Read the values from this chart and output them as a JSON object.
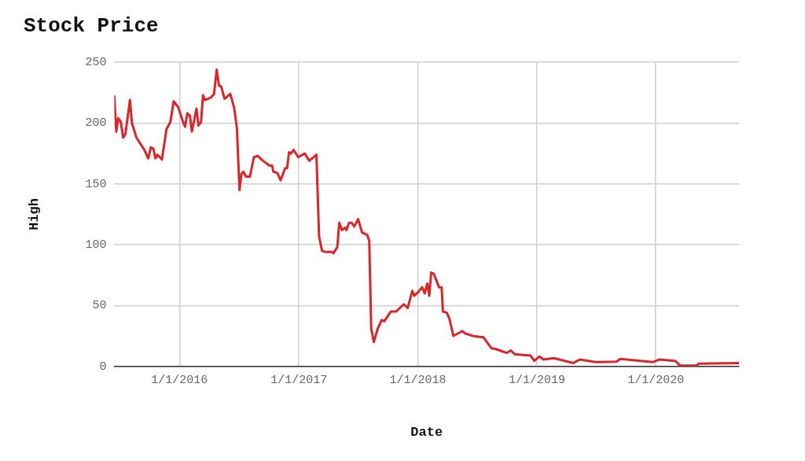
{
  "chart_data": {
    "type": "line",
    "title": "Stock Price",
    "xlabel": "Date",
    "ylabel": "High",
    "xlim": [
      "2015-06-15",
      "2020-09-12"
    ],
    "xticks": [
      {
        "value": "2016-01-01",
        "label": "1/1/2016"
      },
      {
        "value": "2017-01-01",
        "label": "1/1/2017"
      },
      {
        "value": "2018-01-01",
        "label": "1/1/2018"
      },
      {
        "value": "2019-01-01",
        "label": "1/1/2019"
      },
      {
        "value": "2020-01-01",
        "label": "1/1/2020"
      }
    ],
    "ylim": [
      0,
      250
    ],
    "yticks": [
      0,
      50,
      100,
      150,
      200,
      250
    ],
    "grid": true,
    "legend": false,
    "x": [
      "2015-06-15",
      "2015-06-21",
      "2015-06-27",
      "2015-07-05",
      "2015-07-12",
      "2015-07-19",
      "2015-08-02",
      "2015-08-08",
      "2015-08-22",
      "2015-09-15",
      "2015-09-27",
      "2015-10-05",
      "2015-10-13",
      "2015-10-19",
      "2015-10-25",
      "2015-11-08",
      "2015-11-22",
      "2015-12-04",
      "2015-12-14",
      "2015-12-28",
      "2016-01-13",
      "2016-01-18",
      "2016-01-25",
      "2016-02-02",
      "2016-02-08",
      "2016-02-22",
      "2016-02-28",
      "2016-03-07",
      "2016-03-13",
      "2016-03-19",
      "2016-04-06",
      "2016-04-16",
      "2016-04-24",
      "2016-05-01",
      "2016-05-08",
      "2016-05-18",
      "2016-06-05",
      "2016-06-17",
      "2016-06-25",
      "2016-07-03",
      "2016-07-09",
      "2016-07-15",
      "2016-07-23",
      "2016-08-04",
      "2016-08-16",
      "2016-08-28",
      "2016-09-13",
      "2016-10-03",
      "2016-10-11",
      "2016-10-15",
      "2016-10-27",
      "2016-11-06",
      "2016-11-20",
      "2016-11-26",
      "2016-12-02",
      "2016-12-08",
      "2016-12-16",
      "2016-12-30",
      "2017-01-19",
      "2017-02-02",
      "2017-02-24",
      "2017-03-04",
      "2017-03-13",
      "2017-03-24",
      "2017-04-13",
      "2017-04-17",
      "2017-04-29",
      "2017-05-05",
      "2017-05-13",
      "2017-05-23",
      "2017-05-27",
      "2017-06-04",
      "2017-06-12",
      "2017-06-20",
      "2017-07-02",
      "2017-07-14",
      "2017-07-30",
      "2017-08-05",
      "2017-08-11",
      "2017-08-19",
      "2017-08-31",
      "2017-09-12",
      "2017-09-20",
      "2017-10-10",
      "2017-10-26",
      "2017-11-07",
      "2017-11-19",
      "2017-12-01",
      "2017-12-15",
      "2017-12-21",
      "2018-01-02",
      "2018-01-14",
      "2018-01-22",
      "2018-01-30",
      "2018-02-05",
      "2018-02-11",
      "2018-02-19",
      "2018-03-07",
      "2018-03-15",
      "2018-03-19",
      "2018-03-31",
      "2018-04-08",
      "2018-04-20",
      "2018-05-18",
      "2018-05-26",
      "2018-06-19",
      "2018-07-13",
      "2018-07-21",
      "2018-08-14",
      "2018-08-30",
      "2018-10-01",
      "2018-10-13",
      "2018-10-25",
      "2018-12-04",
      "2018-12-12",
      "2018-12-24",
      "2019-01-09",
      "2019-01-21",
      "2019-02-22",
      "2019-04-23",
      "2019-05-13",
      "2019-06-30",
      "2019-09-02",
      "2019-09-14",
      "2019-12-23",
      "2020-01-12",
      "2020-02-29",
      "2020-03-16",
      "2020-05-04",
      "2020-05-12",
      "2020-09-12"
    ],
    "series": [
      {
        "color": "#d8262b",
        "values": [
          222,
          193,
          204,
          201,
          188,
          191,
          219,
          200,
          188,
          178,
          171,
          180,
          179,
          171,
          174,
          170,
          195,
          201,
          218,
          213,
          200,
          197,
          208,
          206,
          193,
          212,
          198,
          201,
          223,
          219,
          221,
          224,
          244,
          231,
          230,
          220,
          224,
          212,
          196,
          145,
          158,
          160,
          156,
          156,
          172,
          173,
          169,
          165,
          165,
          160,
          159,
          153,
          163,
          163,
          176,
          175,
          178,
          172,
          175,
          169,
          174,
          107,
          95,
          94,
          94,
          93,
          98,
          118,
          112,
          114,
          112,
          118,
          118,
          115,
          121,
          110,
          108,
          103,
          31,
          20,
          31,
          38,
          37,
          45,
          45,
          48,
          51,
          48,
          62,
          58,
          61,
          65,
          60,
          68,
          58,
          77,
          76,
          65,
          65,
          45,
          44,
          39,
          25,
          29,
          27,
          25,
          24,
          24,
          15,
          14,
          11,
          13,
          10,
          9,
          9,
          4.5,
          8,
          5.6,
          6.7,
          2.7,
          5.6,
          3.4,
          3.8,
          6,
          3.4,
          5.6,
          4.5,
          0.5,
          0.5,
          2.2,
          2.7
        ]
      }
    ]
  }
}
